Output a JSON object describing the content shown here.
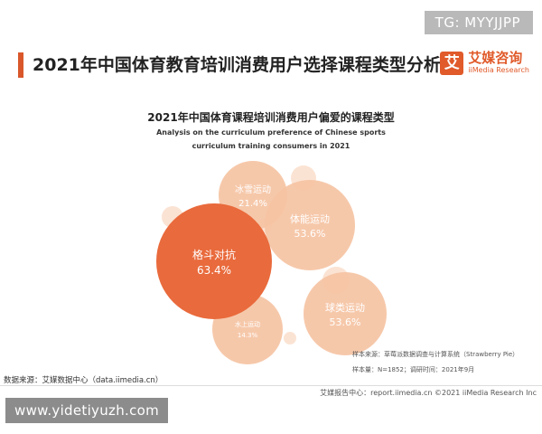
{
  "badge": "TG: MYYJJPP",
  "page_title": "2021年中国体育教育培训消费用户选择课程类型分析",
  "logo": {
    "mark": "艾",
    "name_cn": "艾媒咨询",
    "name_en": "iiMedia Research"
  },
  "colors": {
    "accent": "#d9572b",
    "bubble_dark": "#e96a3c",
    "bubble_light": "#f5c3a3"
  },
  "chart_data": {
    "type": "bubble",
    "title": "2021年中国体育课程培训消费用户偏爱的课程类型",
    "subtitle_line1": "Analysis on the curriculum preference of Chinese sports",
    "subtitle_line2": "curriculum training consumers in 2021",
    "items": [
      {
        "label": "格斗对抗",
        "value": 63.4,
        "value_text": "63.4%"
      },
      {
        "label": "体能运动",
        "value": 53.6,
        "value_text": "53.6%"
      },
      {
        "label": "球类运动",
        "value": 53.6,
        "value_text": "53.6%"
      },
      {
        "label": "冰雪运动",
        "value": 21.4,
        "value_text": "21.4%"
      },
      {
        "label": "水上运动",
        "value": 14.3,
        "value_text": "14.3%"
      }
    ]
  },
  "notes": {
    "line1": "样本来源：草莓派数据调查与计算系统（Strawberry Pie）",
    "line2": "样本量：N=1852；调研时间：2021年9月"
  },
  "source": "数据来源：艾媒数据中心（data.iimedia.cn）",
  "footer": "艾媒报告中心：report.iimedia.cn  ©2021  iiMedia Research Inc",
  "watermark": "www.yidetiyuzh.com"
}
